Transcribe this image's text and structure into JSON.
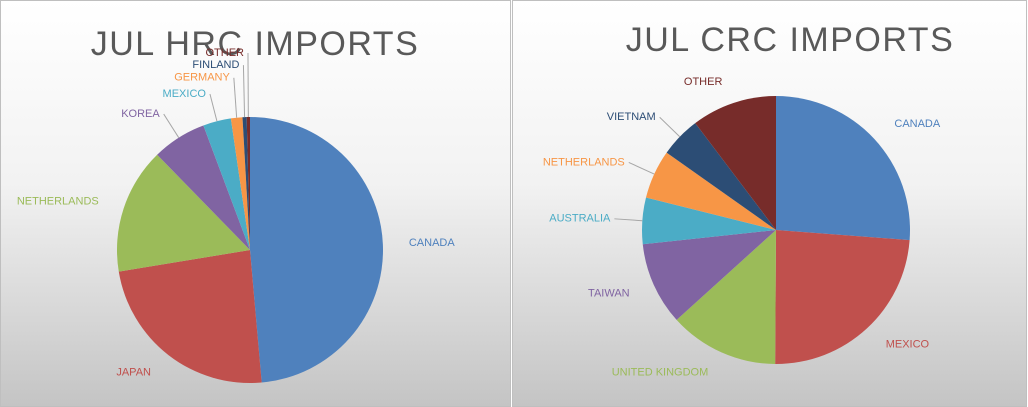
{
  "chart_data": [
    {
      "type": "pie",
      "title": "JUL HRC IMPORTS",
      "categories": [
        "CANADA",
        "JAPAN",
        "NETHERLANDS",
        "KOREA",
        "MEXICO",
        "GERMANY",
        "FINLAND",
        "OTHER"
      ],
      "values": [
        48.6,
        23.8,
        15.3,
        6.6,
        3.4,
        1.4,
        0.5,
        0.4
      ],
      "colors": [
        "#4f81bd",
        "#c0504d",
        "#9bbb59",
        "#8064a2",
        "#4bacc6",
        "#f79646",
        "#2c4d75",
        "#772c2a"
      ]
    },
    {
      "type": "pie",
      "title": "JUL CRC IMPORTS",
      "categories": [
        "CANADA",
        "MEXICO",
        "UNITED KINGDOM",
        "TAIWAN",
        "AUSTRALIA",
        "NETHERLANDS",
        "VIETNAM",
        "OTHER"
      ],
      "values": [
        26.2,
        23.9,
        13.2,
        10.0,
        5.6,
        5.9,
        4.9,
        10.3
      ],
      "colors": [
        "#4f81bd",
        "#c0504d",
        "#9bbb59",
        "#8064a2",
        "#4bacc6",
        "#f79646",
        "#2c4d75",
        "#772c2a"
      ]
    }
  ]
}
